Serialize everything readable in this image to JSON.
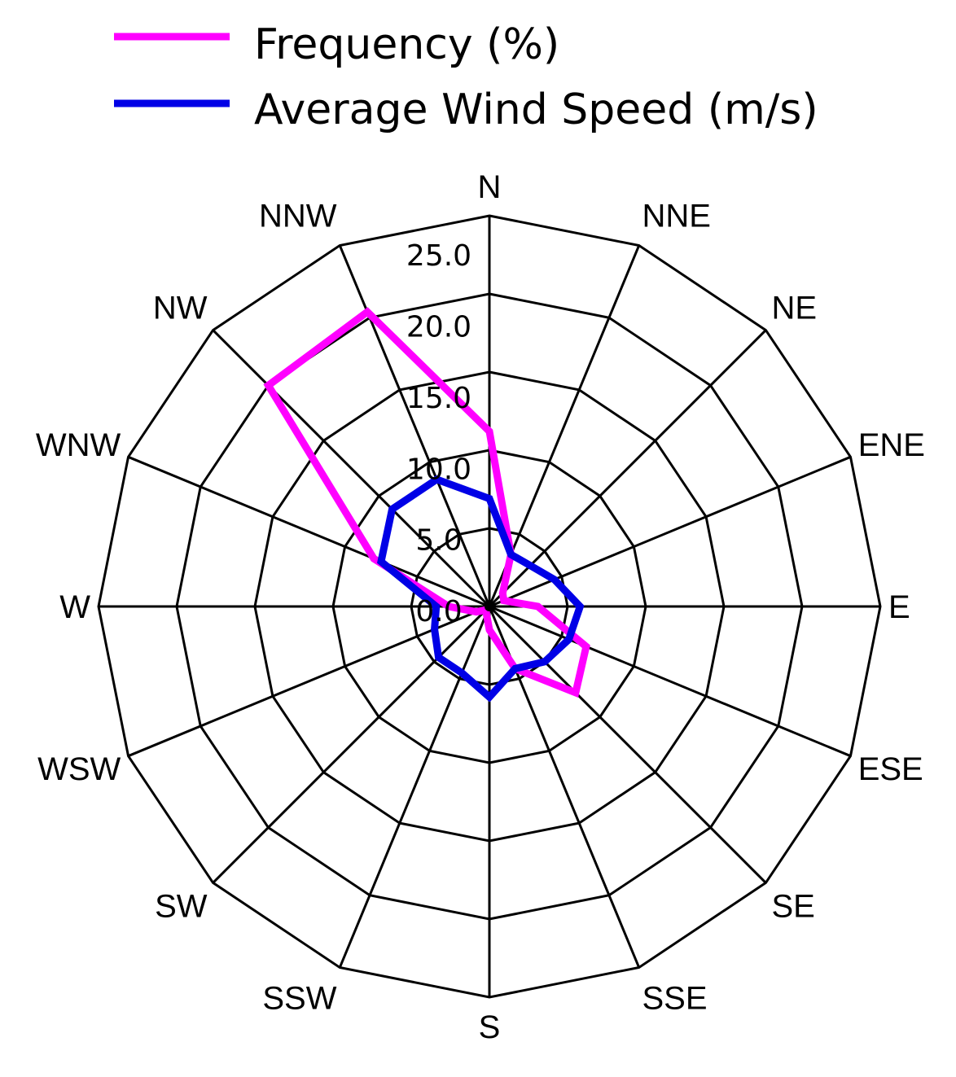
{
  "chart_data": {
    "type": "radar",
    "directions": [
      "N",
      "NNE",
      "NE",
      "ENE",
      "E",
      "ESE",
      "SE",
      "SSE",
      "S",
      "SSW",
      "SW",
      "WSW",
      "W",
      "WNW",
      "NW",
      "NNW"
    ],
    "ticks": [
      "0.0",
      "5.0",
      "10.0",
      "15.0",
      "20.0",
      "25.0"
    ],
    "rlim": [
      0,
      25
    ],
    "grid": true,
    "legend_position": "top",
    "series": [
      {
        "name": "Frequency (%)",
        "color": "#ff00ff",
        "values": [
          11.2,
          3.6,
          1.2,
          1.0,
          3.1,
          6.7,
          7.8,
          4.3,
          1.5,
          0.5,
          0.3,
          0.9,
          2.6,
          8.0,
          20.0,
          20.4
        ]
      },
      {
        "name": "Average Wind Speed (m/s)",
        "color": "#0000e6",
        "values": [
          6.9,
          3.6,
          3.7,
          4.5,
          5.8,
          5.5,
          5.0,
          4.3,
          5.8,
          4.6,
          4.6,
          3.8,
          3.4,
          7.5,
          8.8,
          8.8
        ]
      }
    ]
  }
}
